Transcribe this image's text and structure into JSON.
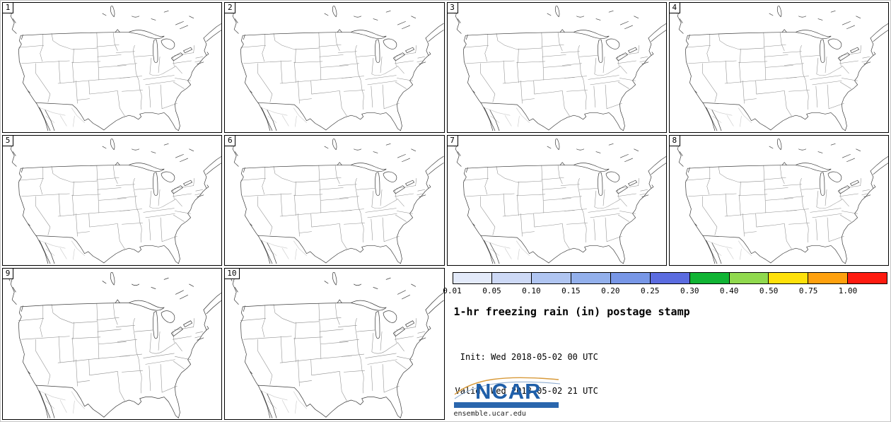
{
  "page": {
    "background": "#ffffff"
  },
  "panels": [
    {
      "label": "1"
    },
    {
      "label": "2"
    },
    {
      "label": "3"
    },
    {
      "label": "4"
    },
    {
      "label": "5"
    },
    {
      "label": "6"
    },
    {
      "label": "7"
    },
    {
      "label": "8"
    },
    {
      "label": "9"
    },
    {
      "label": "10"
    }
  ],
  "legend": {
    "title": "1-hr freezing rain (in) postage stamp",
    "init_line": " Init: Wed 2018-05-02 00 UTC",
    "valid_line": "Valid: Wed 2018-05-02 21 UTC",
    "colorbar": {
      "labels": [
        "0.01",
        "0.05",
        "0.10",
        "0.15",
        "0.20",
        "0.25",
        "0.30",
        "0.40",
        "0.50",
        "0.75",
        "1.00"
      ],
      "colors": [
        "#e3eafa",
        "#cdd9f6",
        "#b0c5f1",
        "#93b0ec",
        "#7897e7",
        "#5b6ce0",
        "#10b434",
        "#90d94e",
        "#ffe10a",
        "#ffa10e",
        "#fe1b10"
      ]
    }
  },
  "branding": {
    "logo_text": "NCAR",
    "logo_blue": "#1f5fa9",
    "bar_blue": "#2a66ad",
    "url": "ensemble.ucar.edu"
  }
}
